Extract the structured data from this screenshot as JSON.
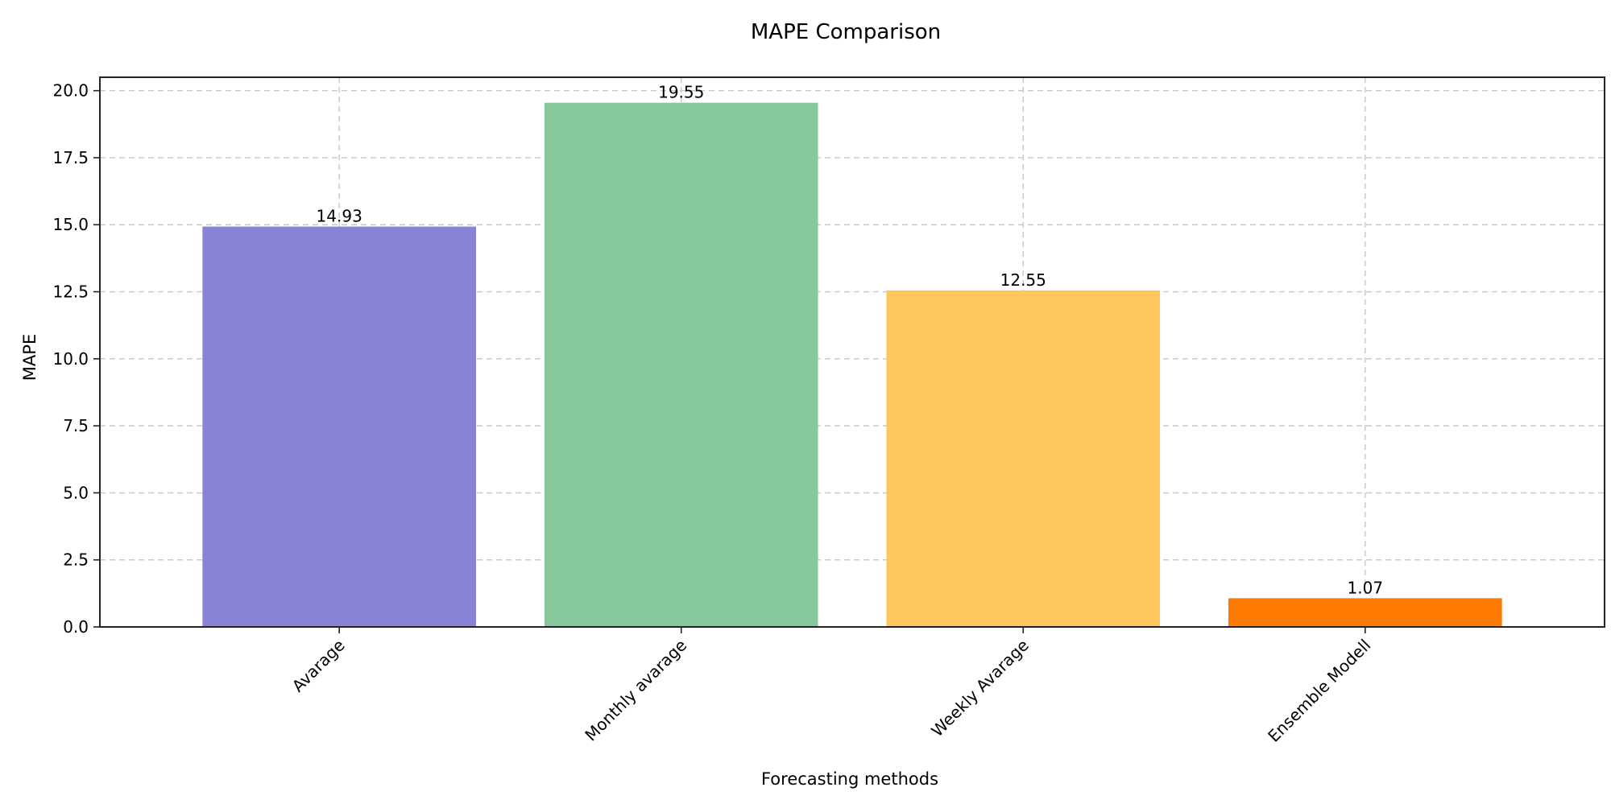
{
  "chart_data": {
    "type": "bar",
    "title": "MAPE Comparison",
    "xlabel": "Forecasting methods",
    "ylabel": "MAPE",
    "categories": [
      "Avarage",
      "Monthly avarage",
      "Weekly Avarage",
      "Ensemble Modell"
    ],
    "values": [
      14.93,
      19.55,
      12.55,
      1.07
    ],
    "value_labels": [
      "14.93",
      "19.55",
      "12.55",
      "1.07"
    ],
    "colors": [
      "#8883d6",
      "#86c89c",
      "#fdc75d",
      "#ff7a03"
    ],
    "ylim": [
      0,
      20.5
    ],
    "yticks": [
      0,
      2.5,
      5,
      7.5,
      10,
      12.5,
      15,
      17.5,
      20
    ],
    "ytick_labels": [
      "0.0",
      "2.5",
      "5.0",
      "7.5",
      "10.0",
      "12.5",
      "15.0",
      "17.5",
      "20.0"
    ],
    "grid": true,
    "xtick_rotation_deg": 45
  }
}
